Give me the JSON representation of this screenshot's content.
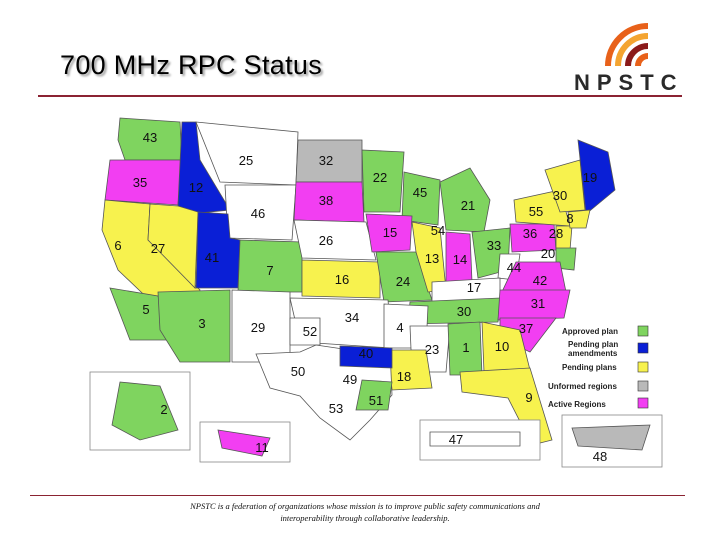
{
  "title": "700 MHz RPC Status",
  "logo": {
    "text": "NPSTC",
    "icon": "npstc-arcs-logo-icon",
    "colors": [
      "#e8611a",
      "#f4a431",
      "#8b1a1a"
    ]
  },
  "legend": [
    {
      "label": "Approved plan",
      "color": "#7fd45f"
    },
    {
      "label": "Pending plan amendments",
      "color": "#0a1fd6"
    },
    {
      "label": "Pending plans",
      "color": "#f7f24e"
    },
    {
      "label": "Unformed regions",
      "color": "#b9b9b9"
    },
    {
      "label": "Active Regions",
      "color": "#f23ef2"
    }
  ],
  "regions": [
    {
      "n": "43",
      "s": "approved"
    },
    {
      "n": "35",
      "s": "active"
    },
    {
      "n": "12",
      "s": "amend"
    },
    {
      "n": "25",
      "s": "white"
    },
    {
      "n": "32",
      "s": "unformed"
    },
    {
      "n": "22",
      "s": "approved"
    },
    {
      "n": "45",
      "s": "approved"
    },
    {
      "n": "30",
      "s": "pending"
    },
    {
      "n": "19",
      "s": "amend"
    },
    {
      "n": "46",
      "s": "white"
    },
    {
      "n": "38",
      "s": "active"
    },
    {
      "n": "21",
      "s": "approved"
    },
    {
      "n": "55",
      "s": "pending"
    },
    {
      "n": "8",
      "s": "pending"
    },
    {
      "n": "6",
      "s": "approved"
    },
    {
      "n": "27",
      "s": "pending"
    },
    {
      "n": "41",
      "s": "amend"
    },
    {
      "n": "26",
      "s": "white"
    },
    {
      "n": "15",
      "s": "active"
    },
    {
      "n": "54",
      "s": "pending"
    },
    {
      "n": "36",
      "s": "active"
    },
    {
      "n": "28",
      "s": "pending"
    },
    {
      "n": "7",
      "s": "approved"
    },
    {
      "n": "16",
      "s": "pending"
    },
    {
      "n": "13",
      "s": "pending"
    },
    {
      "n": "14",
      "s": "active"
    },
    {
      "n": "33",
      "s": "approved"
    },
    {
      "n": "44",
      "s": "white"
    },
    {
      "n": "20",
      "s": "approved"
    },
    {
      "n": "24",
      "s": "approved"
    },
    {
      "n": "42",
      "s": "active"
    },
    {
      "n": "17",
      "s": "white"
    },
    {
      "n": "5",
      "s": "approved"
    },
    {
      "n": "3",
      "s": "approved"
    },
    {
      "n": "29",
      "s": "white"
    },
    {
      "n": "52",
      "s": "white"
    },
    {
      "n": "34",
      "s": "white"
    },
    {
      "n": "4",
      "s": "white"
    },
    {
      "n": "30",
      "s": "approved"
    },
    {
      "n": "31",
      "s": "active"
    },
    {
      "n": "37",
      "s": "active"
    },
    {
      "n": "1",
      "s": "approved"
    },
    {
      "n": "10",
      "s": "pending"
    },
    {
      "n": "23",
      "s": "white"
    },
    {
      "n": "40",
      "s": "amend"
    },
    {
      "n": "50",
      "s": "white"
    },
    {
      "n": "49",
      "s": "white"
    },
    {
      "n": "18",
      "s": "pending"
    },
    {
      "n": "53",
      "s": "white"
    },
    {
      "n": "51",
      "s": "approved"
    },
    {
      "n": "9",
      "s": "pending"
    },
    {
      "n": "2",
      "s": "approved"
    },
    {
      "n": "11",
      "s": "active"
    },
    {
      "n": "47",
      "s": "white"
    },
    {
      "n": "48",
      "s": "unformed"
    }
  ],
  "footer": "NPSTC is a federation of organizations whose mission is to improve public safety communications and interoperability through collaborative leadership."
}
